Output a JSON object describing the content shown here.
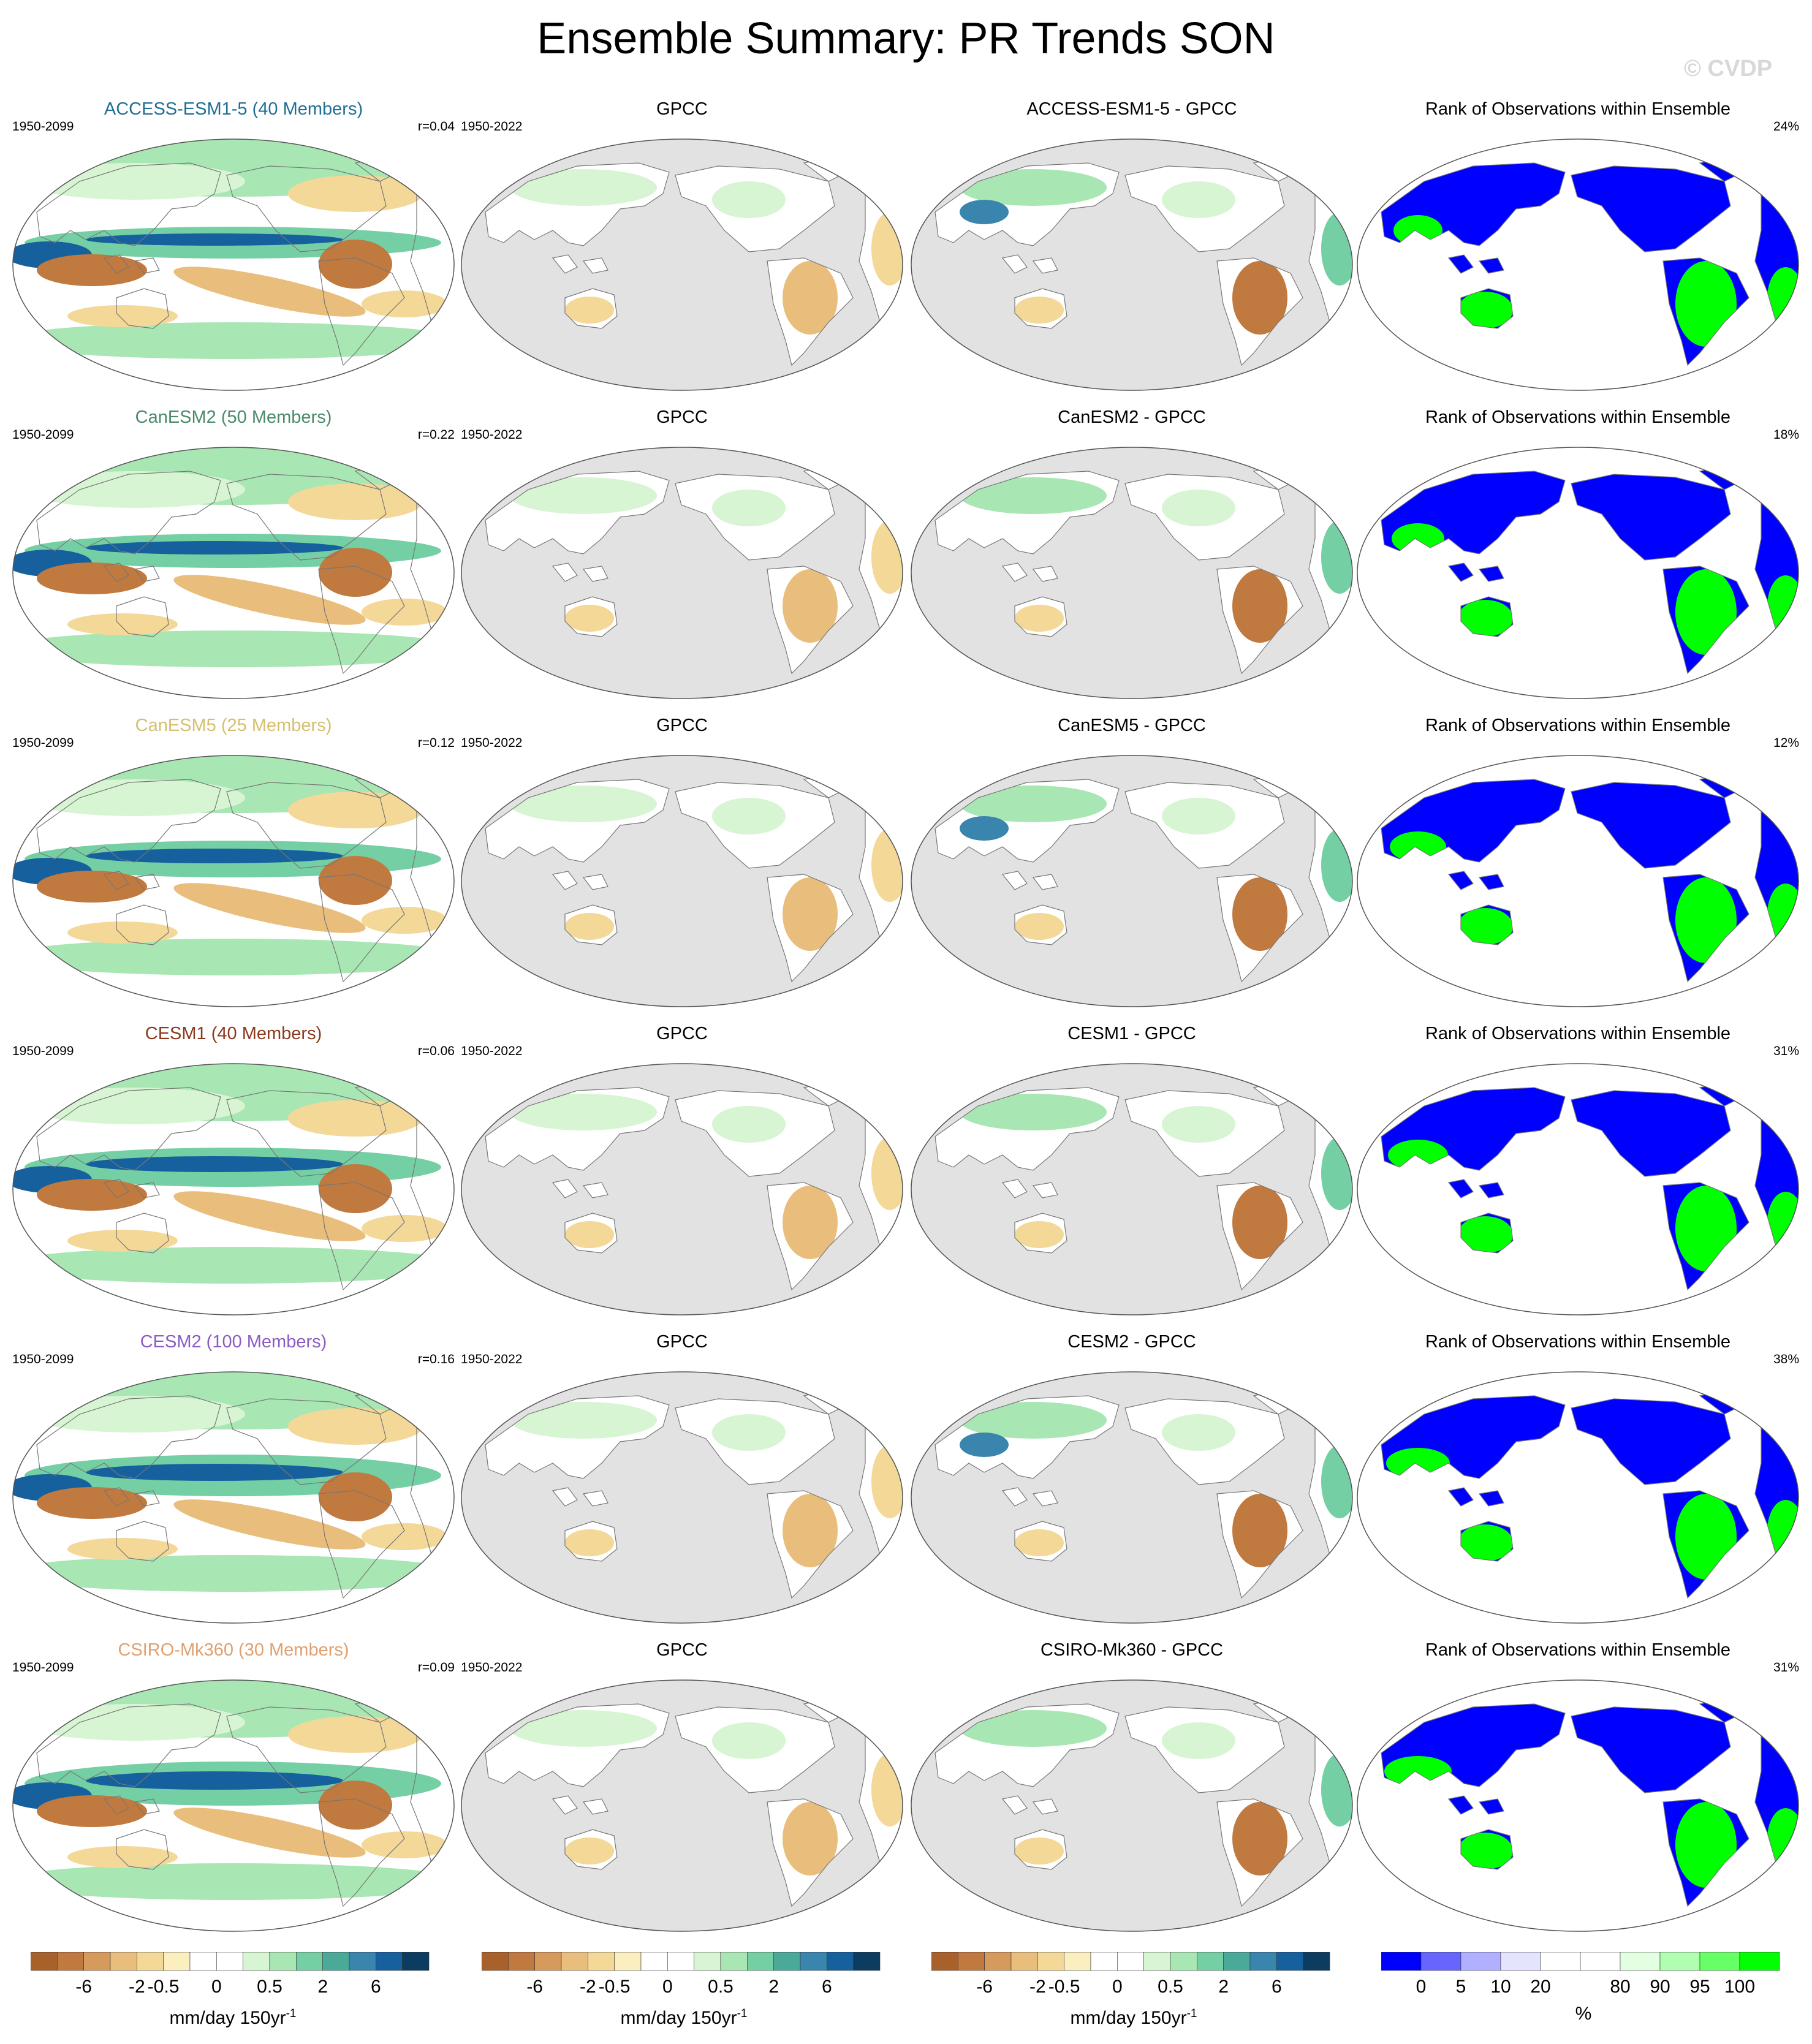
{
  "title": "Ensemble Summary: PR Trends SON",
  "watermark": "© CVDP",
  "rows": [
    {
      "model_title": "ACCESS-ESM1-5 (40 Members)",
      "model_color": "#1f6e94",
      "model_period": "1950-2099",
      "model_r": "r=0.04",
      "obs_title": "GPCC",
      "obs_period": "1950-2022",
      "diff_title": "ACCESS-ESM1-5 - GPCC",
      "rank_title": "Rank of Observations within Ensemble",
      "rank_pct": "24%"
    },
    {
      "model_title": "CanESM2 (50 Members)",
      "model_color": "#4a8a6a",
      "model_period": "1950-2099",
      "model_r": "r=0.22",
      "obs_title": "GPCC",
      "obs_period": "1950-2022",
      "diff_title": "CanESM2 - GPCC",
      "rank_title": "Rank of Observations within Ensemble",
      "rank_pct": "18%"
    },
    {
      "model_title": "CanESM5 (25 Members)",
      "model_color": "#d6bf6e",
      "model_period": "1950-2099",
      "model_r": "r=0.12",
      "obs_title": "GPCC",
      "obs_period": "1950-2022",
      "diff_title": "CanESM5 - GPCC",
      "rank_title": "Rank of Observations within Ensemble",
      "rank_pct": "12%"
    },
    {
      "model_title": "CESM1 (40 Members)",
      "model_color": "#8b3a1c",
      "model_period": "1950-2099",
      "model_r": "r=0.06",
      "obs_title": "GPCC",
      "obs_period": "1950-2022",
      "diff_title": "CESM1 - GPCC",
      "rank_title": "Rank of Observations within Ensemble",
      "rank_pct": "31%"
    },
    {
      "model_title": "CESM2 (100 Members)",
      "model_color": "#8a5cc4",
      "model_period": "1950-2099",
      "model_r": "r=0.16",
      "obs_title": "GPCC",
      "obs_period": "1950-2022",
      "diff_title": "CESM2 - GPCC",
      "rank_title": "Rank of Observations within Ensemble",
      "rank_pct": "38%"
    },
    {
      "model_title": "CSIRO-Mk360 (30 Members)",
      "model_color": "#e0a070",
      "model_period": "1950-2099",
      "model_r": "r=0.09",
      "obs_title": "GPCC",
      "obs_period": "1950-2022",
      "diff_title": "CSIRO-Mk360 - GPCC",
      "rank_title": "Rank of Observations within Ensemble",
      "rank_pct": "31%"
    }
  ],
  "colorbars": {
    "trend": {
      "colors": [
        "#a9612c",
        "#c0793e",
        "#d69a5c",
        "#e9be7c",
        "#f3d898",
        "#fbefc0",
        "#ffffff",
        "#ffffff",
        "#d7f5d3",
        "#a8e6b4",
        "#74cfa4",
        "#4aa998",
        "#3a85ad",
        "#16609e",
        "#0c3d60"
      ],
      "ticks": [
        "-6",
        "-2",
        "-0.5",
        "0",
        "0.5",
        "2",
        "6"
      ],
      "unit": "mm/day 150yr",
      "unit_sup": "-1"
    },
    "rank": {
      "colors": [
        "#0000ff",
        "#6666ff",
        "#b0b0ff",
        "#e4e4ff",
        "#ffffff",
        "#ffffff",
        "#e2ffe2",
        "#b0ffb0",
        "#66ff66",
        "#00ff00"
      ],
      "ticks": [
        "0",
        "5",
        "10",
        "20",
        "80",
        "90",
        "95",
        "100"
      ],
      "unit": "%"
    }
  },
  "map_colors": {
    "land_gray": "#e2e2e2",
    "coast": "#777777",
    "wet_light": "#d7f5d3",
    "wet_mid": "#a8e6b4",
    "wet_strong": "#74cfa4",
    "wet_dark": "#3a85ad",
    "wet_deep": "#16609e",
    "dry_light": "#f3d898",
    "dry_mid": "#e9be7c",
    "dry_strong": "#c0793e",
    "rank_blue": "#0000ff",
    "rank_green": "#00ff00"
  }
}
